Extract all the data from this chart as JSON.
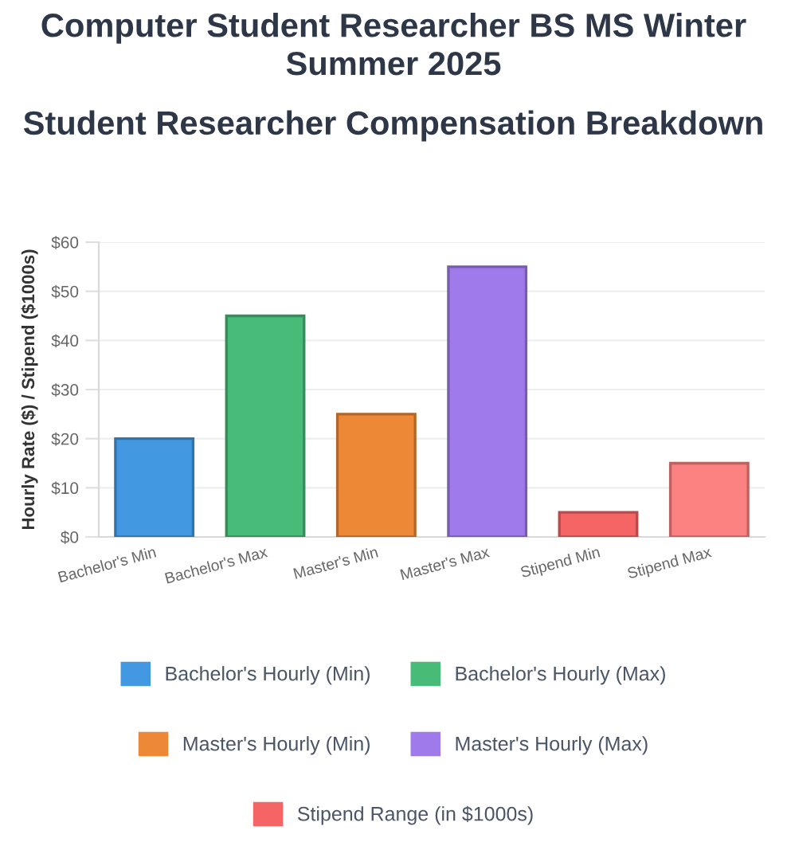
{
  "chart_data": {
    "type": "bar",
    "title": "Computer Student Researcher BS MS Winter Summer 2025",
    "subtitle": "Student Researcher Compensation Breakdown",
    "ylabel": "Hourly Rate ($) / Stipend ($1000s)",
    "categories": [
      "Bachelor's Min",
      "Bachelor's Max",
      "Master's Min",
      "Master's Max",
      "Stipend Min",
      "Stipend Max"
    ],
    "series": [
      {
        "name": "Bachelor's Hourly (Min)",
        "color": "#4299e1",
        "values": [
          20,
          null,
          null,
          null,
          null,
          null
        ]
      },
      {
        "name": "Bachelor's Hourly (Max)",
        "color": "#48bb78",
        "values": [
          null,
          45,
          null,
          null,
          null,
          null
        ]
      },
      {
        "name": "Master's Hourly (Min)",
        "color": "#ed8936",
        "values": [
          null,
          null,
          25,
          null,
          null,
          null
        ]
      },
      {
        "name": "Master's Hourly (Max)",
        "color": "#9f7aea",
        "values": [
          null,
          null,
          null,
          55,
          null,
          null
        ]
      },
      {
        "name": "Stipend Range (in $1000s)",
        "color": "#f56565",
        "colors": [
          null,
          null,
          null,
          null,
          "#f56565",
          "#fc8181"
        ],
        "values": [
          null,
          null,
          null,
          null,
          5,
          15
        ]
      }
    ],
    "ylim": [
      0,
      60
    ],
    "yticks": [
      {
        "value": 0,
        "label": "$0"
      },
      {
        "value": 10,
        "label": "$10"
      },
      {
        "value": 20,
        "label": "$20"
      },
      {
        "value": 30,
        "label": "$30"
      },
      {
        "value": 40,
        "label": "$40"
      },
      {
        "value": 50,
        "label": "$50"
      },
      {
        "value": 60,
        "label": "$60"
      }
    ],
    "grid": "y",
    "legend": "bottom"
  }
}
